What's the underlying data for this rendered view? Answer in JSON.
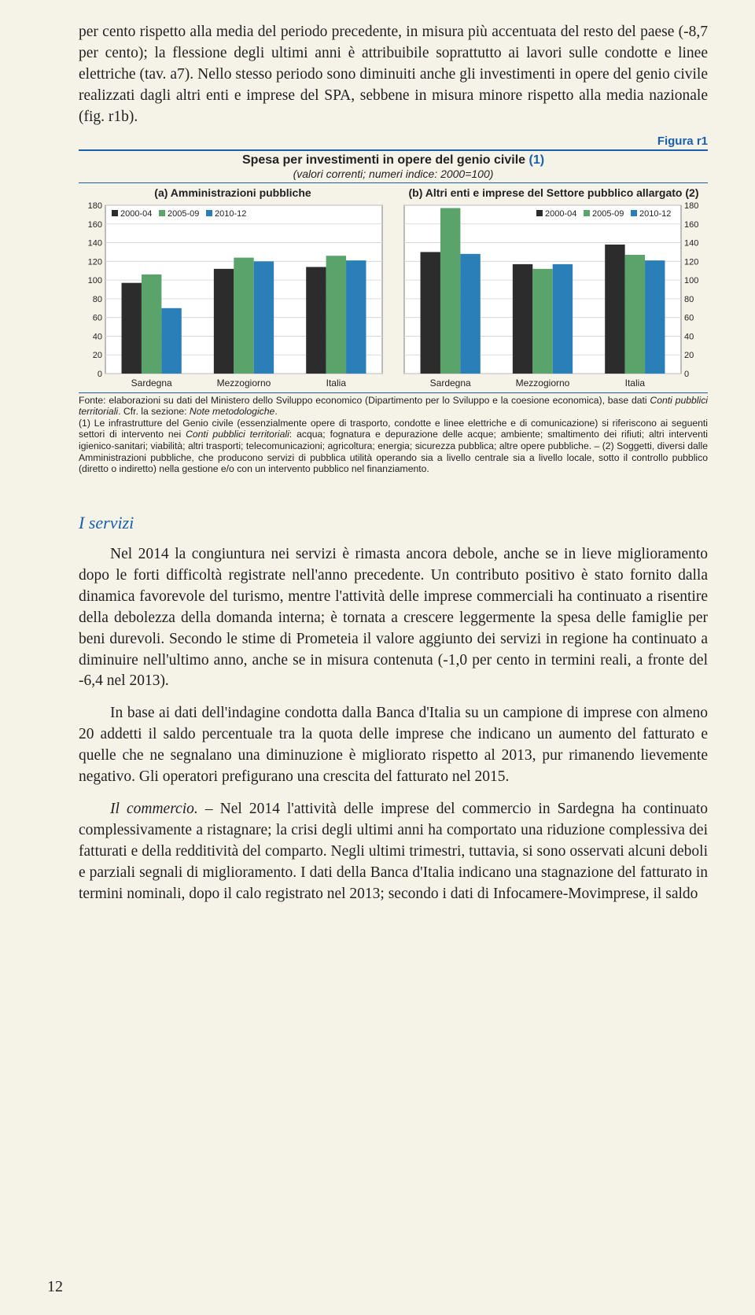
{
  "intro_paragraph": "per cento rispetto alla media del periodo precedente, in misura più accentuata del resto del paese (-8,7 per cento); la flessione degli ultimi anni è attribuibile soprattutto ai lavori sulle condotte e linee elettriche (tav. a7). Nello stesso periodo sono diminuiti anche gli investimenti in opere del genio civile realizzati dagli altri enti e imprese del SPA, sebbene in misura minore rispetto alla media nazionale (fig. r1b).",
  "figure_label": "Figura r1",
  "figure_title_black": "Spesa per investimenti in opere del genio civile ",
  "figure_title_blue": "(1)",
  "figure_subtitle": "(valori correnti; numeri indice: 2000=100)",
  "panel_a_title": "(a) Amministrazioni pubbliche",
  "panel_b_title": "(b) Altri enti e imprese del Settore pubblico allargato (2)",
  "legend_items": [
    "2000-04",
    "2005-09",
    "2010-12"
  ],
  "series_colors": [
    "#2c2c2c",
    "#5aa36a",
    "#2a7fb8"
  ],
  "categories": [
    "Sardegna",
    "Mezzogiorno",
    "Italia"
  ],
  "chart_a": {
    "ylim": [
      0,
      180
    ],
    "ytick_step": 20,
    "values": [
      [
        97,
        106,
        70
      ],
      [
        112,
        124,
        120
      ],
      [
        114,
        126,
        121
      ]
    ],
    "legend_pos": "left",
    "yaxis_side": "left"
  },
  "chart_b": {
    "ylim": [
      0,
      180
    ],
    "ytick_step": 20,
    "values": [
      [
        130,
        177,
        128
      ],
      [
        117,
        112,
        117
      ],
      [
        138,
        127,
        121
      ]
    ],
    "legend_pos": "right",
    "yaxis_side": "right"
  },
  "chart_style": {
    "bg": "#ffffff",
    "grid": "#d0d0d0",
    "axis": "#808080",
    "tick_font": 11,
    "cat_font": 12,
    "legend_font": 11,
    "bar_gap": 0,
    "group_gap_ratio": 0.35
  },
  "source_prefix": "Fonte: elaborazioni su dati del Ministero dello Sviluppo economico (Dipartimento per lo Sviluppo e la coesione economica), base dati ",
  "source_ital1": "Conti pubblici territoriali",
  "source_mid1": ". Cfr. la sezione: ",
  "source_ital2": "Note metodologiche",
  "source_mid2": ".",
  "note1_prefix": "(1) Le infrastrutture del Genio civile (essenzialmente opere di trasporto, condotte e linee elettriche e di comunicazione) si riferiscono ai seguenti settori di intervento nei ",
  "note1_ital": "Conti pubblici territoriali",
  "note1_rest": ": acqua; fognatura e depurazione delle acque; ambiente; smaltimento dei rifiuti; altri interventi igienico-sanitari; viabilità; altri trasporti; telecomunicazioni; agricoltura; energia; sicurezza pubblica; altre opere pubbliche. – (2) Soggetti, diversi dalle Amministrazioni pubbliche, che producono servizi di pubblica utilità operando sia a livello centrale sia a livello locale, sotto il controllo pubblico (diretto o indiretto) nella gestione e/o con un intervento pubblico nel finanziamento.",
  "section_title": "I servizi",
  "para1": "Nel 2014 la congiuntura nei servizi è rimasta ancora debole, anche se in lieve miglioramento dopo le forti difficoltà registrate nell'anno precedente. Un contributo positivo è stato fornito dalla dinamica favorevole del turismo, mentre l'attività delle imprese commerciali ha continuato a risentire della debolezza della domanda interna; è tornata a crescere leggermente la spesa delle famiglie per beni durevoli. Secondo le stime di Prometeia il valore aggiunto dei servizi in regione ha continuato a diminuire nell'ultimo anno, anche se in misura contenuta (-1,0 per cento in termini reali, a fronte del -6,4 nel 2013).",
  "para2": "In base ai dati dell'indagine condotta dalla Banca d'Italia su un campione di imprese con almeno 20 addetti il saldo percentuale tra la quota delle imprese che indicano un aumento del fatturato e quelle che ne segnalano una diminuzione è migliorato rispetto al 2013, pur rimanendo lievemente negativo. Gli operatori prefigurano una crescita del fatturato nel 2015.",
  "para3_ital": "Il commercio.",
  "para3_rest": " – Nel 2014 l'attività delle imprese del commercio in Sardegna ha continuato complessivamente a ristagnare; la crisi degli ultimi anni ha comportato una riduzione complessiva dei fatturati e della redditività del comparto. Negli ultimi trimestri, tuttavia, si sono osservati alcuni deboli e parziali segnali di miglioramento. I dati della Banca d'Italia indicano una stagnazione del fatturato in termini nominali, dopo il calo registrato nel 2013; secondo i dati di Infocamere-Movimprese, il saldo",
  "page_number": "12"
}
